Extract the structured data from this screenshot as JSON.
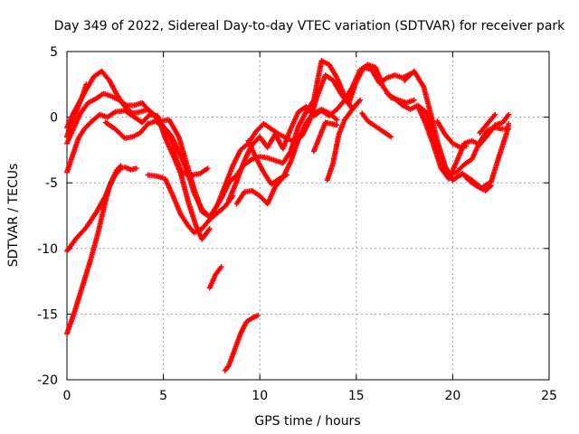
{
  "chart_data": {
    "type": "scatter",
    "title": "Day 349 of 2022, Sidereal Day-to-day VTEC variation (SDTVAR) for receiver park",
    "xlabel": "GPS time / hours",
    "ylabel": "SDTVAR / TECUs",
    "xlim": [
      0,
      25
    ],
    "ylim": [
      -20,
      5
    ],
    "xticks": [
      0,
      5,
      10,
      15,
      20,
      25
    ],
    "yticks": [
      -20,
      -15,
      -10,
      -5,
      0,
      5
    ],
    "grid": true,
    "marker": "+",
    "color": "#ff0000",
    "series": [
      {
        "name": "s1",
        "points": [
          [
            0,
            -0.8
          ],
          [
            0.3,
            0.2
          ],
          [
            0.7,
            1.3
          ],
          [
            1.0,
            2.1
          ],
          [
            1.4,
            3.1
          ],
          [
            1.8,
            3.5
          ],
          [
            2.2,
            2.8
          ],
          [
            2.6,
            1.7
          ],
          [
            3.0,
            0.8
          ],
          [
            3.4,
            0.3
          ],
          [
            3.8,
            0.4
          ],
          [
            4.2,
            0.6
          ],
          [
            4.6,
            0.1
          ],
          [
            5.0,
            -0.7
          ],
          [
            5.4,
            -1.4
          ],
          [
            5.8,
            -2.6
          ],
          [
            6.2,
            -4.0
          ],
          [
            6.6,
            -5.8
          ],
          [
            7.0,
            -7.0
          ],
          [
            7.4,
            -7.6
          ]
        ]
      },
      {
        "name": "s2",
        "points": [
          [
            0,
            -2.0
          ],
          [
            0.3,
            -1.0
          ],
          [
            0.7,
            0.3
          ],
          [
            1.1,
            1.1
          ],
          [
            1.5,
            1.4
          ],
          [
            1.9,
            1.8
          ],
          [
            2.3,
            1.6
          ],
          [
            2.7,
            1.3
          ],
          [
            3.1,
            0.9
          ],
          [
            3.5,
            0.9
          ],
          [
            3.9,
            1.1
          ],
          [
            4.3,
            0.4
          ],
          [
            4.8,
            -0.3
          ],
          [
            5.3,
            -0.2
          ],
          [
            5.8,
            -1.5
          ],
          [
            6.2,
            -3.5
          ],
          [
            6.6,
            -5.5
          ],
          [
            7.0,
            -7.2
          ],
          [
            7.4,
            -7.6
          ]
        ]
      },
      {
        "name": "s3",
        "points": [
          [
            0,
            -4.2
          ],
          [
            0.3,
            -2.9
          ],
          [
            0.6,
            -1.6
          ],
          [
            0.9,
            -0.9
          ],
          [
            1.3,
            -0.3
          ],
          [
            1.7,
            0.2
          ],
          [
            2.1,
            0.0
          ],
          [
            2.5,
            0.4
          ],
          [
            3.0,
            0.5
          ],
          [
            3.4,
            0.1
          ],
          [
            3.9,
            -0.4
          ],
          [
            4.3,
            0.2
          ],
          [
            4.7,
            0.1
          ],
          [
            5.1,
            -1.6
          ],
          [
            5.5,
            -2.9
          ],
          [
            5.9,
            -4.3
          ],
          [
            6.3,
            -6.5
          ],
          [
            6.7,
            -8.3
          ],
          [
            7.0,
            -9.3
          ],
          [
            7.4,
            -8.5
          ]
        ]
      },
      {
        "name": "s4",
        "points": [
          [
            0,
            -1.5
          ],
          [
            0.2,
            -0.5
          ],
          [
            0.5,
            0.5
          ],
          [
            0.8,
            1.6
          ],
          [
            1.0,
            2.5
          ]
        ]
      },
      {
        "name": "s5",
        "points": [
          [
            0,
            -10.2
          ],
          [
            0.5,
            -9.2
          ],
          [
            1.0,
            -8.4
          ],
          [
            1.5,
            -7.3
          ],
          [
            2.0,
            -6.0
          ],
          [
            2.3,
            -4.9
          ],
          [
            2.6,
            -4.0
          ],
          [
            2.8,
            -3.7
          ]
        ]
      },
      {
        "name": "s6",
        "points": [
          [
            0,
            -16.5
          ],
          [
            0.4,
            -14.8
          ],
          [
            0.8,
            -12.9
          ],
          [
            1.2,
            -11.0
          ],
          [
            1.6,
            -8.9
          ],
          [
            1.9,
            -7.0
          ],
          [
            2.2,
            -5.3
          ],
          [
            2.5,
            -4.4
          ],
          [
            2.8,
            -3.9
          ],
          [
            3.0,
            -3.8
          ],
          [
            3.3,
            -4.0
          ],
          [
            3.6,
            -3.9
          ]
        ]
      },
      {
        "name": "s7",
        "points": [
          [
            2.0,
            -0.4
          ],
          [
            2.5,
            -0.9
          ],
          [
            3.0,
            -1.6
          ],
          [
            3.4,
            -1.5
          ],
          [
            3.8,
            -1.2
          ],
          [
            4.2,
            -0.5
          ],
          [
            4.6,
            -0.3
          ],
          [
            5.0,
            -0.8
          ],
          [
            5.4,
            -1.7
          ],
          [
            5.7,
            -3.3
          ],
          [
            6.0,
            -4.3
          ]
        ]
      },
      {
        "name": "s8",
        "points": [
          [
            4.2,
            -4.4
          ],
          [
            4.7,
            -4.5
          ],
          [
            5.1,
            -4.7
          ],
          [
            5.5,
            -6.0
          ],
          [
            5.9,
            -7.4
          ],
          [
            6.3,
            -8.3
          ],
          [
            6.6,
            -8.8
          ],
          [
            7.0,
            -8.5
          ],
          [
            7.4,
            -7.8
          ],
          [
            7.8,
            -7.3
          ],
          [
            8.2,
            -6.8
          ],
          [
            8.6,
            -6.0
          ]
        ]
      },
      {
        "name": "s9",
        "points": [
          [
            6.1,
            -4.3
          ],
          [
            6.5,
            -4.4
          ],
          [
            6.9,
            -4.3
          ],
          [
            7.3,
            -3.9
          ]
        ]
      },
      {
        "name": "s10",
        "points": [
          [
            7.4,
            -7.6
          ],
          [
            7.8,
            -6.7
          ],
          [
            8.2,
            -5.2
          ],
          [
            8.6,
            -3.7
          ],
          [
            9.0,
            -2.5
          ],
          [
            9.4,
            -2.0
          ],
          [
            9.8,
            -1.1
          ],
          [
            10.2,
            -0.5
          ],
          [
            10.6,
            -0.9
          ],
          [
            11.0,
            -1.3
          ],
          [
            11.4,
            -1.6
          ],
          [
            11.8,
            -1.9
          ],
          [
            12.2,
            -1.4
          ],
          [
            12.6,
            -0.2
          ],
          [
            13.0,
            1.7
          ],
          [
            13.4,
            3.2
          ],
          [
            13.8,
            2.8
          ],
          [
            14.2,
            1.8
          ],
          [
            14.6,
            1.0
          ],
          [
            15.0,
            2.7
          ],
          [
            15.4,
            3.8
          ],
          [
            15.8,
            3.6
          ],
          [
            16.2,
            2.6
          ],
          [
            16.6,
            3.0
          ],
          [
            17.0,
            3.2
          ],
          [
            17.4,
            3.0
          ],
          [
            17.8,
            3.3
          ]
        ]
      },
      {
        "name": "s11",
        "points": [
          [
            7.6,
            -7.2
          ],
          [
            8.0,
            -6.2
          ],
          [
            8.4,
            -5.0
          ],
          [
            8.8,
            -4.4
          ],
          [
            9.2,
            -3.6
          ],
          [
            9.6,
            -3.2
          ],
          [
            10.0,
            -3.0
          ],
          [
            10.4,
            -3.1
          ],
          [
            10.8,
            -3.3
          ],
          [
            11.2,
            -3.5
          ],
          [
            11.6,
            -2.6
          ],
          [
            12.0,
            -0.7
          ],
          [
            12.4,
            0.4
          ],
          [
            12.8,
            1.3
          ],
          [
            13.2,
            4.3
          ],
          [
            13.6,
            4.0
          ],
          [
            14.0,
            3.0
          ],
          [
            14.4,
            1.6
          ],
          [
            14.8,
            0.6
          ],
          [
            15.2,
            1.3
          ]
        ]
      },
      {
        "name": "s12",
        "points": [
          [
            8.4,
            -6.3
          ],
          [
            8.8,
            -4.9
          ],
          [
            9.2,
            -3.3
          ],
          [
            9.6,
            -2.1
          ],
          [
            10.0,
            -1.5
          ],
          [
            10.4,
            -2.3
          ],
          [
            10.8,
            -1.3
          ],
          [
            11.2,
            -2.4
          ],
          [
            11.6,
            -0.9
          ],
          [
            12.0,
            0.4
          ],
          [
            12.4,
            0.8
          ],
          [
            12.8,
            0.1
          ],
          [
            13.2,
            0.5
          ],
          [
            13.6,
            0.1
          ],
          [
            14.0,
            0.6
          ],
          [
            14.4,
            1.3
          ],
          [
            14.8,
            2.3
          ],
          [
            15.2,
            3.6
          ],
          [
            15.6,
            4.0
          ],
          [
            16.0,
            3.8
          ],
          [
            16.4,
            2.3
          ],
          [
            16.8,
            1.5
          ],
          [
            17.2,
            1.3
          ],
          [
            17.6,
            1.1
          ],
          [
            18.0,
            1.3
          ]
        ]
      },
      {
        "name": "s13",
        "points": [
          [
            8.8,
            -6.6
          ],
          [
            9.2,
            -5.7
          ],
          [
            9.6,
            -5.6
          ],
          [
            10.0,
            -6.0
          ],
          [
            10.4,
            -6.6
          ],
          [
            10.8,
            -5.3
          ],
          [
            11.2,
            -4.6
          ],
          [
            11.6,
            -3.4
          ],
          [
            12.0,
            -1.7
          ],
          [
            12.4,
            -0.4
          ],
          [
            12.8,
            0.3
          ],
          [
            13.2,
            0.6
          ],
          [
            13.6,
            0.3
          ],
          [
            14.0,
            -0.2
          ]
        ]
      },
      {
        "name": "s14",
        "points": [
          [
            9.4,
            -1.8
          ],
          [
            9.8,
            -3.1
          ],
          [
            10.2,
            -4.2
          ],
          [
            10.6,
            -5.1
          ],
          [
            11.0,
            -4.7
          ],
          [
            11.4,
            -4.4
          ]
        ]
      },
      {
        "name": "s15",
        "points": [
          [
            7.4,
            -13.0
          ],
          [
            7.7,
            -12.0
          ],
          [
            8.0,
            -11.4
          ]
        ]
      },
      {
        "name": "s16",
        "points": [
          [
            8.2,
            -19.3
          ],
          [
            8.4,
            -18.9
          ],
          [
            8.7,
            -17.7
          ],
          [
            9.0,
            -16.5
          ],
          [
            9.3,
            -15.6
          ],
          [
            9.6,
            -15.3
          ],
          [
            9.9,
            -15.1
          ]
        ]
      },
      {
        "name": "s17",
        "points": [
          [
            12.8,
            -2.6
          ],
          [
            13.1,
            -1.5
          ],
          [
            13.4,
            -0.4
          ],
          [
            13.7,
            -0.5
          ],
          [
            14.0,
            -0.6
          ]
        ]
      },
      {
        "name": "s18",
        "points": [
          [
            13.5,
            -4.8
          ],
          [
            13.8,
            -3.5
          ],
          [
            14.1,
            -1.3
          ],
          [
            14.4,
            -0.2
          ],
          [
            14.7,
            0.4
          ],
          [
            15.0,
            1.0
          ]
        ]
      },
      {
        "name": "s19",
        "points": [
          [
            15.3,
            0.3
          ],
          [
            15.6,
            -0.3
          ],
          [
            15.9,
            -0.6
          ],
          [
            16.2,
            -0.9
          ],
          [
            16.5,
            -1.2
          ],
          [
            16.8,
            -1.5
          ]
        ]
      },
      {
        "name": "s20",
        "points": [
          [
            16.6,
            1.8
          ],
          [
            17.0,
            1.4
          ],
          [
            17.4,
            0.9
          ],
          [
            17.8,
            0.6
          ],
          [
            18.2,
            0.9
          ],
          [
            18.6,
            0.4
          ],
          [
            19.0,
            -1.4
          ],
          [
            19.4,
            -3.4
          ],
          [
            19.8,
            -4.4
          ],
          [
            20.2,
            -4.2
          ],
          [
            20.6,
            -3.6
          ],
          [
            21.0,
            -3.2
          ],
          [
            21.4,
            -1.9
          ],
          [
            21.8,
            -1.0
          ],
          [
            22.2,
            -0.8
          ],
          [
            22.6,
            -0.9
          ],
          [
            22.9,
            -0.9
          ]
        ]
      },
      {
        "name": "s21",
        "points": [
          [
            17.5,
            2.8
          ],
          [
            18.0,
            3.5
          ],
          [
            18.5,
            2.3
          ],
          [
            18.8,
            0.6
          ],
          [
            19.2,
            -1.8
          ],
          [
            19.6,
            -3.7
          ],
          [
            20.0,
            -4.8
          ],
          [
            20.5,
            -4.3
          ],
          [
            21.0,
            -4.8
          ],
          [
            21.5,
            -5.4
          ],
          [
            22.0,
            -4.9
          ],
          [
            22.4,
            -3.0
          ],
          [
            22.8,
            -1.2
          ],
          [
            22.9,
            -0.5
          ]
        ]
      },
      {
        "name": "s22",
        "points": [
          [
            18.2,
            0.8
          ],
          [
            18.6,
            -0.5
          ],
          [
            19.0,
            -2.1
          ],
          [
            19.4,
            -3.9
          ],
          [
            19.8,
            -4.7
          ],
          [
            20.2,
            -3.4
          ],
          [
            20.6,
            -2.0
          ],
          [
            21.0,
            -1.8
          ],
          [
            21.4,
            -2.1
          ],
          [
            21.8,
            -1.4
          ],
          [
            22.2,
            -0.6
          ],
          [
            22.6,
            -0.4
          ],
          [
            22.9,
            0.2
          ]
        ]
      },
      {
        "name": "s23",
        "points": [
          [
            19.2,
            -0.3
          ],
          [
            19.6,
            -1.3
          ],
          [
            20.0,
            -2.0
          ],
          [
            20.4,
            -2.3
          ],
          [
            20.7,
            -2.2
          ]
        ]
      },
      {
        "name": "s24",
        "points": [
          [
            20.5,
            -4.3
          ],
          [
            20.9,
            -4.9
          ],
          [
            21.3,
            -5.3
          ],
          [
            21.7,
            -5.6
          ],
          [
            22.0,
            -5.2
          ]
        ]
      },
      {
        "name": "s25",
        "points": [
          [
            21.4,
            -1.2
          ],
          [
            21.8,
            -0.5
          ],
          [
            22.2,
            0.2
          ]
        ]
      }
    ]
  }
}
